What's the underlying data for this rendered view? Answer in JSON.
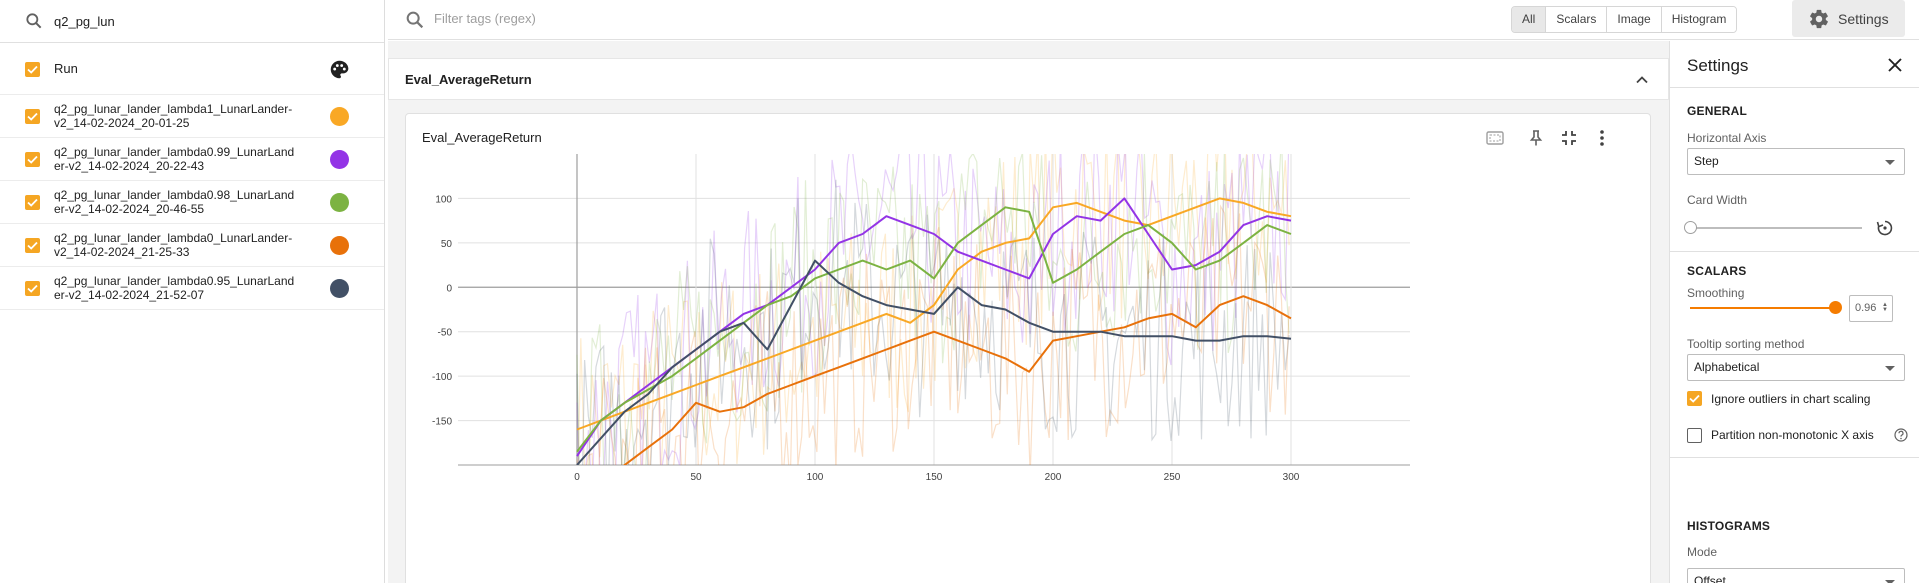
{
  "runs_panel": {
    "search_value": "q2_pg_lun",
    "header_label": "Run",
    "runs": [
      {
        "name": "q2_pg_lunar_lander_lambda1_LunarLander-v2_14-02-2024_20-01-25",
        "line1": "q2_pg_lunar_lander_lambda1_LunarLander-",
        "line2": "v2_14-02-2024_20-01-25",
        "color": "#f9a825"
      },
      {
        "name": "q2_pg_lunar_lander_lambda0.99_LunarLander-v2_14-02-2024_20-22-43",
        "line1": "q2_pg_lunar_lander_lambda0.99_LunarLand",
        "line2": "er-v2_14-02-2024_20-22-43",
        "color": "#9334e6"
      },
      {
        "name": "q2_pg_lunar_lander_lambda0.98_LunarLander-v2_14-02-2024_20-46-55",
        "line1": "q2_pg_lunar_lander_lambda0.98_LunarLand",
        "line2": "er-v2_14-02-2024_20-46-55",
        "color": "#7cb342"
      },
      {
        "name": "q2_pg_lunar_lander_lambda0_LunarLander-v2_14-02-2024_21-25-33",
        "line1": "q2_pg_lunar_lander_lambda0_LunarLander-",
        "line2": "v2_14-02-2024_21-25-33",
        "color": "#e8710a"
      },
      {
        "name": "q2_pg_lunar_lander_lambda0.95_LunarLander-v2_14-02-2024_21-52-07",
        "line1": "q2_pg_lunar_lander_lambda0.95_LunarLand",
        "line2": "er-v2_14-02-2024_21-52-07",
        "color": "#425066"
      }
    ]
  },
  "topbar": {
    "filter_placeholder": "Filter tags (regex)",
    "tabs": [
      "All",
      "Scalars",
      "Image",
      "Histogram"
    ],
    "active_tab": "All",
    "settings_label": "Settings"
  },
  "group": {
    "title": "Eval_AverageReturn"
  },
  "card": {
    "title": "Eval_AverageReturn"
  },
  "chart_data": {
    "type": "line",
    "title": "Eval_AverageReturn",
    "xlabel": "",
    "ylabel": "",
    "xlim": [
      -50,
      350
    ],
    "ylim": [
      -200,
      150
    ],
    "x_ticks": [
      0,
      50,
      100,
      150,
      200,
      250,
      300
    ],
    "y_ticks": [
      100,
      50,
      0,
      -50,
      -100,
      -150
    ],
    "grid": true,
    "smoothing": 0.96,
    "series": [
      {
        "name": "q2_pg_lunar_lander_lambda1_LunarLander-v2_14-02-2024_20-01-25",
        "color": "#f9a825",
        "x": [
          0,
          10,
          20,
          30,
          40,
          50,
          60,
          70,
          80,
          90,
          100,
          110,
          120,
          130,
          140,
          150,
          160,
          170,
          180,
          190,
          200,
          210,
          220,
          230,
          240,
          250,
          260,
          270,
          280,
          290,
          300
        ],
        "y": [
          -160,
          -150,
          -140,
          -130,
          -120,
          -110,
          -100,
          -90,
          -80,
          -70,
          -60,
          -50,
          -40,
          -30,
          -40,
          -20,
          20,
          40,
          50,
          55,
          90,
          95,
          85,
          75,
          70,
          80,
          90,
          100,
          95,
          85,
          80
        ]
      },
      {
        "name": "q2_pg_lunar_lander_lambda0.99_LunarLander-v2_14-02-2024_20-22-43",
        "color": "#9334e6",
        "x": [
          0,
          10,
          20,
          30,
          40,
          50,
          60,
          70,
          80,
          90,
          100,
          110,
          120,
          130,
          140,
          150,
          160,
          170,
          180,
          190,
          200,
          210,
          220,
          230,
          240,
          250,
          260,
          270,
          280,
          290,
          300
        ],
        "y": [
          -190,
          -150,
          -130,
          -110,
          -90,
          -70,
          -50,
          -30,
          -20,
          0,
          20,
          50,
          60,
          80,
          70,
          60,
          40,
          30,
          20,
          10,
          60,
          80,
          75,
          100,
          60,
          20,
          25,
          40,
          70,
          80,
          75
        ]
      },
      {
        "name": "q2_pg_lunar_lander_lambda0.98_LunarLander-v2_14-02-2024_20-46-55",
        "color": "#7cb342",
        "x": [
          0,
          10,
          20,
          30,
          40,
          50,
          60,
          70,
          80,
          90,
          100,
          110,
          120,
          130,
          140,
          150,
          160,
          170,
          180,
          190,
          200,
          210,
          220,
          230,
          240,
          250,
          260,
          270,
          280,
          290,
          300
        ],
        "y": [
          -185,
          -150,
          -130,
          -115,
          -100,
          -80,
          -60,
          -40,
          -20,
          -10,
          10,
          20,
          30,
          20,
          30,
          10,
          50,
          70,
          90,
          85,
          5,
          20,
          40,
          60,
          70,
          50,
          20,
          30,
          50,
          70,
          60
        ]
      },
      {
        "name": "q2_pg_lunar_lander_lambda0_LunarLander-v2_14-02-2024_21-25-33",
        "color": "#e8710a",
        "x": [
          0,
          10,
          20,
          30,
          40,
          50,
          60,
          70,
          80,
          90,
          100,
          110,
          120,
          130,
          140,
          150,
          160,
          170,
          180,
          190,
          200,
          210,
          220,
          230,
          240,
          250,
          260,
          270,
          280,
          290,
          300
        ],
        "y": [
          -250,
          -220,
          -200,
          -180,
          -160,
          -130,
          -140,
          -135,
          -120,
          -110,
          -100,
          -90,
          -80,
          -70,
          -60,
          -50,
          -60,
          -70,
          -80,
          -95,
          -60,
          -55,
          -50,
          -45,
          -35,
          -30,
          -45,
          -20,
          -10,
          -20,
          -35
        ]
      },
      {
        "name": "q2_pg_lunar_lander_lambda0.95_LunarLander-v2_14-02-2024_21-52-07",
        "color": "#425066",
        "x": [
          0,
          10,
          20,
          30,
          40,
          50,
          60,
          70,
          80,
          90,
          100,
          110,
          120,
          130,
          140,
          150,
          160,
          170,
          180,
          190,
          200,
          210,
          220,
          230,
          240,
          250,
          260,
          270,
          280,
          290,
          300
        ],
        "y": [
          -200,
          -170,
          -140,
          -120,
          -90,
          -70,
          -50,
          -40,
          -70,
          -20,
          30,
          5,
          -10,
          -20,
          -25,
          -30,
          0,
          -20,
          -25,
          -40,
          -50,
          -50,
          -50,
          -55,
          -55,
          -55,
          -60,
          -60,
          -55,
          -55,
          -58
        ]
      }
    ]
  },
  "settings": {
    "title": "Settings",
    "general": {
      "title": "GENERAL",
      "horizontal_axis_label": "Horizontal Axis",
      "horizontal_axis_value": "Step",
      "card_width_label": "Card Width"
    },
    "scalars": {
      "title": "SCALARS",
      "smoothing_label": "Smoothing",
      "smoothing_value": "0.96",
      "tooltip_label": "Tooltip sorting method",
      "tooltip_value": "Alphabetical",
      "ignore_outliers_label": "Ignore outliers in chart scaling",
      "ignore_outliers_checked": true,
      "partition_label": "Partition non-monotonic X axis",
      "partition_checked": false
    },
    "histograms": {
      "title": "HISTOGRAMS",
      "mode_label": "Mode",
      "mode_value": "Offset"
    }
  },
  "colors": {
    "accent": "#f57c00",
    "checkbox": "#f5a623"
  }
}
